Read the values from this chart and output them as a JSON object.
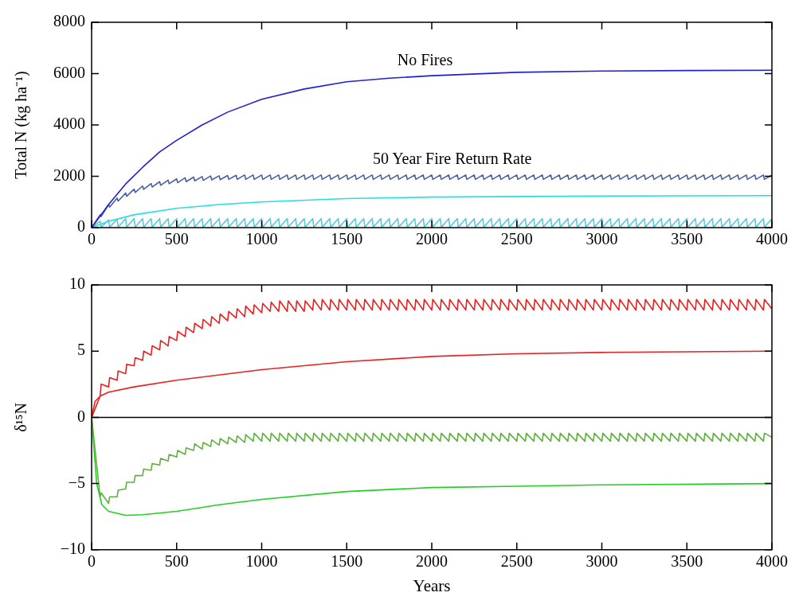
{
  "chart_data": [
    {
      "type": "line",
      "ylabel": "Total N (kg ha⁻¹)",
      "xlim": [
        0,
        4000
      ],
      "xticks": [
        0,
        500,
        1000,
        1500,
        2000,
        2500,
        3000,
        3500,
        4000
      ],
      "ylim": [
        0,
        8000
      ],
      "yticks": [
        0,
        2000,
        4000,
        6000,
        8000
      ],
      "grid": false,
      "legend": false,
      "marker": "none",
      "line_style": "solid",
      "annotations": [
        "No Fires",
        "50 Year Fire Return Rate"
      ],
      "x": [
        0,
        50,
        56,
        100,
        106,
        150,
        156,
        200,
        206,
        250,
        256,
        300,
        306,
        350,
        356,
        400,
        406,
        450,
        456,
        500,
        506,
        550,
        556,
        600,
        606,
        650,
        656,
        700,
        706,
        750,
        756,
        800,
        806,
        850,
        856,
        900,
        906,
        950,
        956,
        1000,
        1006,
        1050,
        1056,
        1100,
        1106,
        1150,
        1156,
        1200,
        1206,
        1250,
        1256,
        1300,
        1306,
        1350,
        1356,
        1400,
        1406,
        1450,
        1456,
        1500,
        1506,
        1550,
        1556,
        1600,
        1606,
        1650,
        1656,
        1700,
        1706,
        1750,
        1756,
        1800,
        1806,
        1850,
        1856,
        1900,
        1906,
        1950,
        1956,
        2000,
        2006,
        2050,
        2056,
        2100,
        2106,
        2150,
        2156,
        2200,
        2206,
        2250,
        2256,
        2300,
        2306,
        2350,
        2356,
        2400,
        2406,
        2450,
        2456,
        2500,
        2506,
        2550,
        2556,
        2600,
        2606,
        2650,
        2656,
        2700,
        2706,
        2750,
        2756,
        2800,
        2806,
        2850,
        2856,
        2900,
        2906,
        2950,
        2956,
        3000,
        3006,
        3050,
        3056,
        3100,
        3106,
        3150,
        3156,
        3200,
        3206,
        3250,
        3256,
        3300,
        3306,
        3350,
        3356,
        3400,
        3406,
        3450,
        3456,
        3500,
        3506,
        3550,
        3556,
        3600,
        3606,
        3650,
        3656,
        3700,
        3706,
        3750,
        3756,
        3800,
        3806,
        3850,
        3856,
        3900,
        3906,
        3950,
        3956,
        4000
      ],
      "series": [
        {
          "color": "#1f1fd6",
          "x": [
            0,
            100,
            200,
            300,
            400,
            500,
            650,
            800,
            1000,
            1250,
            1500,
            1750,
            2000,
            2500,
            3000,
            3500,
            4000
          ],
          "values": [
            0,
            900,
            1700,
            2350,
            2950,
            3400,
            4000,
            4500,
            5000,
            5400,
            5680,
            5820,
            5920,
            6050,
            6100,
            6120,
            6130
          ]
        },
        {
          "color": "#4a5fa0",
          "values": [
            0,
            500,
            430,
            900,
            800,
            1150,
            1030,
            1350,
            1220,
            1500,
            1370,
            1620,
            1490,
            1720,
            1580,
            1790,
            1650,
            1850,
            1710,
            1900,
            1750,
            1940,
            1790,
            1970,
            1820,
            1990,
            1840,
            2010,
            1860,
            2020,
            1870,
            2030,
            1880,
            2040,
            1880,
            2050,
            1880,
            2050,
            1880,
            2050,
            1880,
            2050,
            1880,
            2050,
            1880,
            2050,
            1880,
            2050,
            1880,
            2050,
            1880,
            2050,
            1880,
            2050,
            1880,
            2050,
            1880,
            2050,
            1880,
            2050,
            1880,
            2050,
            1880,
            2050,
            1880,
            2050,
            1880,
            2050,
            1880,
            2050,
            1880,
            2050,
            1880,
            2050,
            1880,
            2050,
            1880,
            2050,
            1880,
            2050,
            1880,
            2050,
            1880,
            2050,
            1880,
            2050,
            1880,
            2050,
            1880,
            2050,
            1880,
            2050,
            1880,
            2050,
            1880,
            2050,
            1880,
            2050,
            1880,
            2050,
            1880,
            2050,
            1880,
            2050,
            1880,
            2050,
            1880,
            2050,
            1880,
            2050,
            1880,
            2050,
            1880,
            2050,
            1880,
            2050,
            1880,
            2050,
            1880,
            2050,
            1880,
            2050,
            1880,
            2050,
            1880,
            2050,
            1880,
            2050,
            1880,
            2050,
            1880,
            2050,
            1880,
            2050,
            1880,
            2050,
            1880,
            2050,
            1880,
            2050,
            1880,
            2050,
            1880,
            2050,
            1880,
            2050,
            1880,
            2050,
            1880,
            2050,
            1880,
            2050,
            1880,
            2050,
            1880,
            2050,
            1880,
            2050,
            1880,
            2050
          ]
        },
        {
          "color": "#22e0e0",
          "x": [
            0,
            100,
            250,
            500,
            750,
            1000,
            1500,
            2000,
            3000,
            4000
          ],
          "values": [
            0,
            250,
            500,
            750,
            900,
            1000,
            1130,
            1190,
            1230,
            1250
          ]
        },
        {
          "color": "#60c8d8",
          "values": [
            0,
            250,
            20,
            300,
            20,
            330,
            20,
            350,
            20,
            350,
            20,
            350,
            20,
            350,
            20,
            350,
            20,
            350,
            20,
            350,
            20,
            350,
            20,
            350,
            20,
            350,
            20,
            350,
            20,
            350,
            20,
            350,
            20,
            350,
            20,
            350,
            20,
            350,
            20,
            350,
            20,
            350,
            20,
            350,
            20,
            350,
            20,
            350,
            20,
            350,
            20,
            350,
            20,
            350,
            20,
            350,
            20,
            350,
            20,
            350,
            20,
            350,
            20,
            350,
            20,
            350,
            20,
            350,
            20,
            350,
            20,
            350,
            20,
            350,
            20,
            350,
            20,
            350,
            20,
            350,
            20,
            350,
            20,
            350,
            20,
            350,
            20,
            350,
            20,
            350,
            20,
            350,
            20,
            350,
            20,
            350,
            20,
            350,
            20,
            350,
            20,
            350,
            20,
            350,
            20,
            350,
            20,
            350,
            20,
            350,
            20,
            350,
            20,
            350,
            20,
            350,
            20,
            350,
            20,
            350,
            20,
            350,
            20,
            350,
            20,
            350,
            20,
            350,
            20,
            350,
            20,
            350,
            20,
            350,
            20,
            350,
            20,
            350,
            20,
            350,
            20,
            350,
            20,
            350,
            20,
            350,
            20,
            350,
            20,
            350,
            20,
            350,
            20,
            350,
            20,
            350,
            20,
            350,
            20,
            350
          ]
        }
      ]
    },
    {
      "type": "line",
      "xlabel": "Years",
      "ylabel": "δ¹⁵N",
      "xlim": [
        0,
        4000
      ],
      "xticks": [
        0,
        500,
        1000,
        1500,
        2000,
        2500,
        3000,
        3500,
        4000
      ],
      "ylim": [
        -10,
        10
      ],
      "yticks": [
        -10,
        -5,
        0,
        5,
        10
      ],
      "grid": false,
      "legend": false,
      "marker": "none",
      "line_style": "solid",
      "ref_lines": [
        {
          "axis": "y",
          "value": 0,
          "color": "#000000"
        }
      ],
      "x": [
        0,
        50,
        56,
        100,
        106,
        150,
        156,
        200,
        206,
        250,
        256,
        300,
        306,
        350,
        356,
        400,
        406,
        450,
        456,
        500,
        506,
        550,
        556,
        600,
        606,
        650,
        656,
        700,
        706,
        750,
        756,
        800,
        806,
        850,
        856,
        900,
        906,
        950,
        956,
        1000,
        1006,
        1050,
        1056,
        1100,
        1106,
        1150,
        1156,
        1200,
        1206,
        1250,
        1256,
        1300,
        1306,
        1350,
        1356,
        1400,
        1406,
        1450,
        1456,
        1500,
        1506,
        1550,
        1556,
        1600,
        1606,
        1650,
        1656,
        1700,
        1706,
        1750,
        1756,
        1800,
        1806,
        1850,
        1856,
        1900,
        1906,
        1950,
        1956,
        2000,
        2006,
        2050,
        2056,
        2100,
        2106,
        2150,
        2156,
        2200,
        2206,
        2250,
        2256,
        2300,
        2306,
        2350,
        2356,
        2400,
        2406,
        2450,
        2456,
        2500,
        2506,
        2550,
        2556,
        2600,
        2606,
        2650,
        2656,
        2700,
        2706,
        2750,
        2756,
        2800,
        2806,
        2850,
        2856,
        2900,
        2906,
        2950,
        2956,
        3000,
        3006,
        3050,
        3056,
        3100,
        3106,
        3150,
        3156,
        3200,
        3206,
        3250,
        3256,
        3300,
        3306,
        3350,
        3356,
        3400,
        3406,
        3450,
        3456,
        3500,
        3506,
        3550,
        3556,
        3600,
        3606,
        3650,
        3656,
        3700,
        3706,
        3750,
        3756,
        3800,
        3806,
        3850,
        3856,
        3900,
        3906,
        3950,
        3956,
        4000
      ],
      "series": [
        {
          "color": "#e82020",
          "values": [
            0,
            1.6,
            2.5,
            2.3,
            3.0,
            2.8,
            3.5,
            3.3,
            4.0,
            3.9,
            4.5,
            4.3,
            5.0,
            4.7,
            5.4,
            5.1,
            5.8,
            5.4,
            6.1,
            5.8,
            6.5,
            6.1,
            6.8,
            6.4,
            7.1,
            6.7,
            7.4,
            6.9,
            7.6,
            7.1,
            7.8,
            7.3,
            8.0,
            7.5,
            8.2,
            7.6,
            8.4,
            7.8,
            8.5,
            7.9,
            8.6,
            8.0,
            8.7,
            8.0,
            8.8,
            8.0,
            8.8,
            8.0,
            8.8,
            8.0,
            8.8,
            8.1,
            8.9,
            8.1,
            8.9,
            8.1,
            8.9,
            8.1,
            8.9,
            8.1,
            8.9,
            8.1,
            8.9,
            8.1,
            8.9,
            8.1,
            8.9,
            8.1,
            8.9,
            8.1,
            8.9,
            8.1,
            8.9,
            8.1,
            8.9,
            8.1,
            8.9,
            8.1,
            8.9,
            8.1,
            8.9,
            8.1,
            8.9,
            8.1,
            8.9,
            8.1,
            8.9,
            8.1,
            8.9,
            8.1,
            8.9,
            8.1,
            8.9,
            8.1,
            8.9,
            8.1,
            8.9,
            8.1,
            8.9,
            8.1,
            8.9,
            8.1,
            8.9,
            8.1,
            8.9,
            8.1,
            8.9,
            8.1,
            8.9,
            8.1,
            8.9,
            8.1,
            8.9,
            8.1,
            8.9,
            8.1,
            8.9,
            8.1,
            8.9,
            8.1,
            8.9,
            8.1,
            8.9,
            8.1,
            8.9,
            8.1,
            8.9,
            8.1,
            8.9,
            8.1,
            8.9,
            8.1,
            8.9,
            8.1,
            8.9,
            8.1,
            8.9,
            8.1,
            8.9,
            8.1,
            8.9,
            8.1,
            8.9,
            8.1,
            8.9,
            8.1,
            8.9,
            8.1,
            8.9,
            8.1,
            8.9,
            8.1,
            8.9,
            8.1,
            8.9,
            8.1,
            8.9,
            8.1,
            8.9,
            8.2
          ]
        },
        {
          "color": "#e82020",
          "x": [
            0,
            20,
            50,
            100,
            250,
            500,
            1000,
            1500,
            2000,
            2500,
            3000,
            4000
          ],
          "values": [
            0,
            1.2,
            1.6,
            1.9,
            2.3,
            2.8,
            3.6,
            4.2,
            4.6,
            4.8,
            4.9,
            5.0
          ]
        },
        {
          "color": "#60b040",
          "values": [
            0,
            -6.0,
            -5.7,
            -6.5,
            -6.0,
            -6.0,
            -5.5,
            -5.4,
            -4.9,
            -4.9,
            -4.4,
            -4.4,
            -3.9,
            -4.0,
            -3.5,
            -3.6,
            -3.1,
            -3.3,
            -2.8,
            -3.0,
            -2.5,
            -2.8,
            -2.3,
            -2.5,
            -2.0,
            -2.4,
            -1.9,
            -2.2,
            -1.7,
            -2.1,
            -1.6,
            -2.0,
            -1.5,
            -1.9,
            -1.4,
            -1.9,
            -1.3,
            -1.8,
            -1.2,
            -1.8,
            -1.2,
            -1.8,
            -1.2,
            -1.8,
            -1.2,
            -1.8,
            -1.2,
            -1.8,
            -1.2,
            -1.8,
            -1.2,
            -1.8,
            -1.2,
            -1.8,
            -1.2,
            -1.8,
            -1.2,
            -1.8,
            -1.2,
            -1.8,
            -1.2,
            -1.8,
            -1.2,
            -1.8,
            -1.2,
            -1.8,
            -1.2,
            -1.8,
            -1.2,
            -1.8,
            -1.2,
            -1.8,
            -1.2,
            -1.8,
            -1.2,
            -1.8,
            -1.2,
            -1.8,
            -1.2,
            -1.8,
            -1.2,
            -1.8,
            -1.2,
            -1.8,
            -1.2,
            -1.8,
            -1.2,
            -1.8,
            -1.2,
            -1.8,
            -1.2,
            -1.8,
            -1.2,
            -1.8,
            -1.2,
            -1.8,
            -1.2,
            -1.8,
            -1.2,
            -1.8,
            -1.2,
            -1.8,
            -1.2,
            -1.8,
            -1.2,
            -1.8,
            -1.2,
            -1.8,
            -1.2,
            -1.8,
            -1.2,
            -1.8,
            -1.2,
            -1.8,
            -1.2,
            -1.8,
            -1.2,
            -1.8,
            -1.2,
            -1.8,
            -1.2,
            -1.8,
            -1.2,
            -1.8,
            -1.2,
            -1.8,
            -1.2,
            -1.8,
            -1.2,
            -1.8,
            -1.2,
            -1.8,
            -1.2,
            -1.8,
            -1.2,
            -1.8,
            -1.2,
            -1.8,
            -1.2,
            -1.8,
            -1.2,
            -1.8,
            -1.2,
            -1.8,
            -1.2,
            -1.8,
            -1.2,
            -1.8,
            -1.2,
            -1.8,
            -1.2,
            -1.8,
            -1.2,
            -1.8,
            -1.2,
            -1.8,
            -1.2,
            -1.8,
            -1.2,
            -1.5
          ]
        },
        {
          "color": "#20d020",
          "x": [
            0,
            30,
            60,
            100,
            200,
            300,
            500,
            750,
            1000,
            1500,
            2000,
            2500,
            3000,
            4000
          ],
          "values": [
            0,
            -5.0,
            -6.6,
            -7.1,
            -7.4,
            -7.35,
            -7.1,
            -6.6,
            -6.2,
            -5.6,
            -5.3,
            -5.2,
            -5.1,
            -5.0
          ]
        }
      ]
    }
  ]
}
